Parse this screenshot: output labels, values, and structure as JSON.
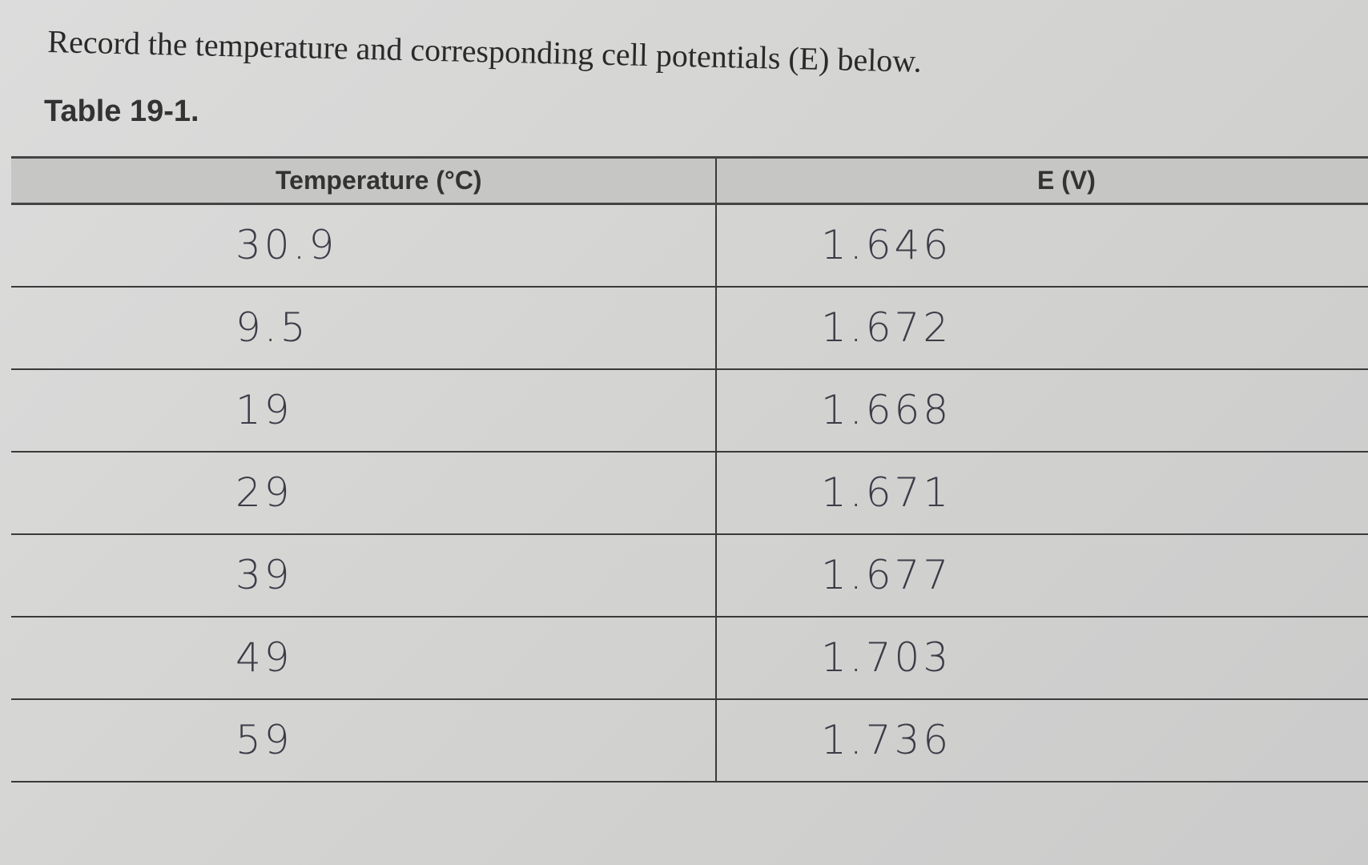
{
  "header": {
    "title": "Record the temperature and corresponding cell potentials (E) below.",
    "table_label": "Table 19-1."
  },
  "table": {
    "columns": [
      "Temperature (°C)",
      "E (V)"
    ],
    "rows": [
      [
        "30.9",
        "1.646"
      ],
      [
        "9.5",
        "1.672"
      ],
      [
        "19",
        "1.668"
      ],
      [
        "29",
        "1.671"
      ],
      [
        "39",
        "1.677"
      ],
      [
        "49",
        "1.703"
      ],
      [
        "59",
        "1.736"
      ]
    ]
  }
}
